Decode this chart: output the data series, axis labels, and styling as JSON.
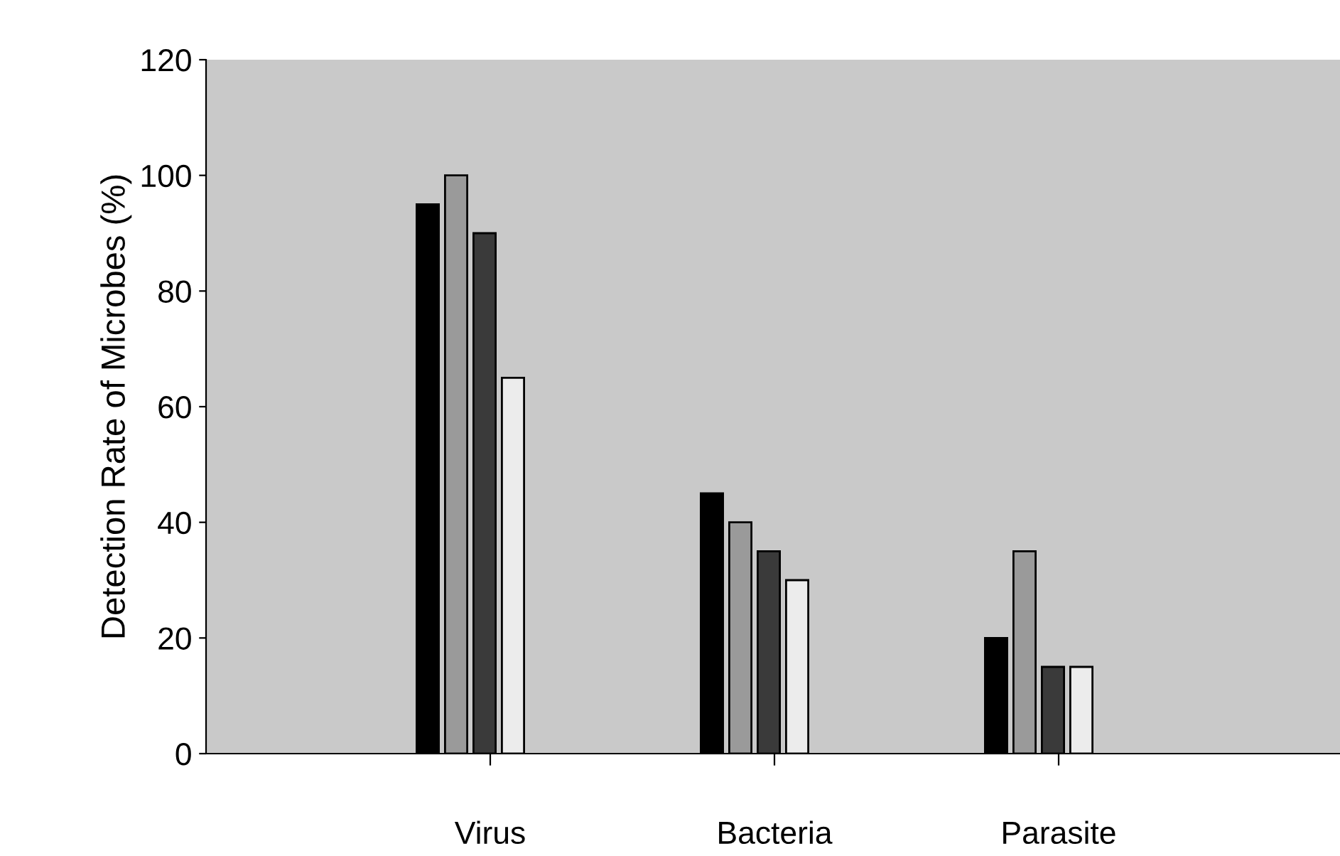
{
  "chart_data": {
    "type": "bar",
    "ylabel": "Detection Rate of Microbes (%)",
    "categories": [
      "Virus",
      "Bacteria",
      "Parasite"
    ],
    "series": [
      {
        "color": "#000000",
        "values": [
          95,
          45,
          20
        ]
      },
      {
        "color": "#9a9a9a",
        "values": [
          100,
          40,
          35
        ]
      },
      {
        "color": "#3a3a3a",
        "values": [
          90,
          35,
          15
        ]
      },
      {
        "color": "#ececec",
        "values": [
          65,
          30,
          15
        ]
      }
    ],
    "ylim": [
      0,
      120
    ],
    "yticks": [
      0,
      20,
      40,
      60,
      80,
      100,
      120
    ],
    "grid": false,
    "legend": false
  }
}
